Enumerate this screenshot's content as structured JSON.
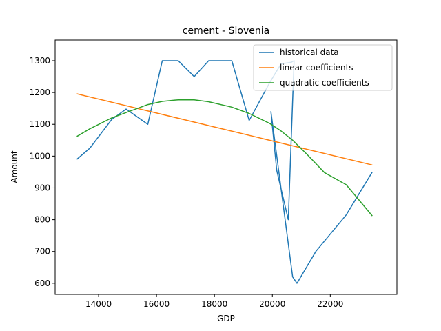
{
  "chart_data": {
    "type": "line",
    "title": "cement - Slovenia",
    "xlabel": "GDP",
    "ylabel": "Amount",
    "xlim": [
      12500,
      24300
    ],
    "ylim": [
      565,
      1365
    ],
    "xticks": [
      14000,
      16000,
      18000,
      20000,
      22000
    ],
    "yticks": [
      600,
      700,
      800,
      900,
      1000,
      1100,
      1200,
      1300
    ],
    "grid": false,
    "legend_position": "top-right",
    "series": [
      {
        "name": "historical data",
        "color": "#1f77b4",
        "x": [
          13250,
          13700,
          14450,
          14950,
          15700,
          16200,
          16750,
          17300,
          17800,
          18600,
          19200,
          19900,
          20100,
          20300,
          20650,
          20750,
          20550,
          20150,
          19950,
          20700,
          20850,
          21500,
          22550,
          23450
        ],
        "y": [
          990,
          1025,
          1115,
          1148,
          1100,
          1300,
          1300,
          1250,
          1300,
          1300,
          1112,
          1230,
          1260,
          1290,
          1295,
          1300,
          800,
          955,
          1140,
          620,
          600,
          700,
          815,
          950
        ]
      },
      {
        "name": "linear coefficients",
        "color": "#ff7f0e",
        "x": [
          13250,
          23450
        ],
        "y": [
          1196,
          972
        ]
      },
      {
        "name": "quadratic coefficients",
        "color": "#2ca02c",
        "x": [
          13250,
          13700,
          14450,
          14950,
          15700,
          16200,
          16750,
          17300,
          17800,
          18600,
          19200,
          19900,
          20300,
          20700,
          21200,
          21800,
          22550,
          23450
        ],
        "y": [
          1062,
          1086,
          1120,
          1137,
          1162,
          1172,
          1177,
          1177,
          1171,
          1154,
          1134,
          1103,
          1079,
          1050,
          1005,
          948,
          910,
          812
        ]
      }
    ]
  }
}
